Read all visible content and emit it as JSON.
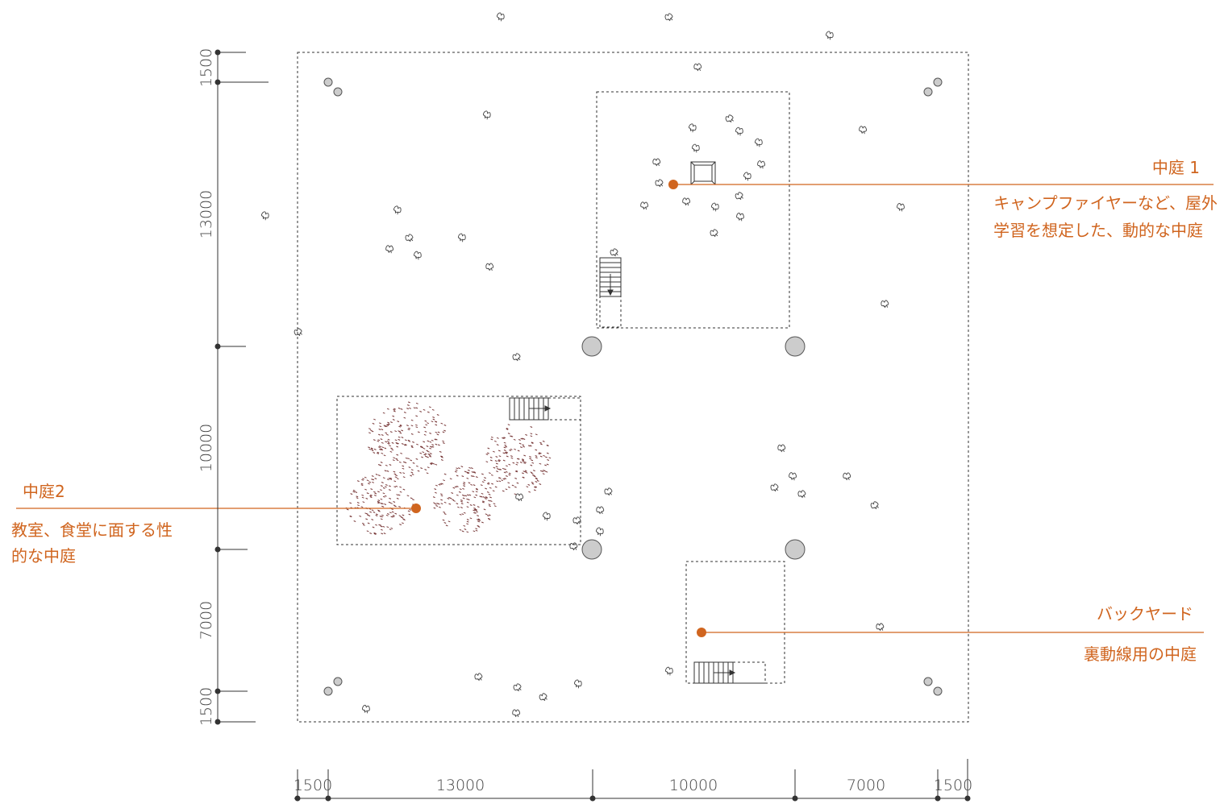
{
  "colors": {
    "accent": "#d0651f",
    "line": "#333333",
    "dash": "#333333",
    "column_fill": "#cccccc"
  },
  "dimensions": {
    "horizontal": [
      "1500",
      "13000",
      "10000",
      "7000",
      "1500"
    ],
    "vertical": [
      "1500",
      "13000",
      "10000",
      "7000",
      "1500"
    ]
  },
  "courtyards": [
    {
      "title": "中庭 1",
      "desc_lines": [
        "キャンプファイヤーなど、屋外",
        "学習を想定した、動的な中庭"
      ]
    },
    {
      "title": "中庭2",
      "desc_lines": [
        "教室、食堂に面する性",
        "的な中庭"
      ]
    },
    {
      "title": "バックヤード",
      "desc_lines": [
        "裏動線用の中庭"
      ]
    }
  ]
}
